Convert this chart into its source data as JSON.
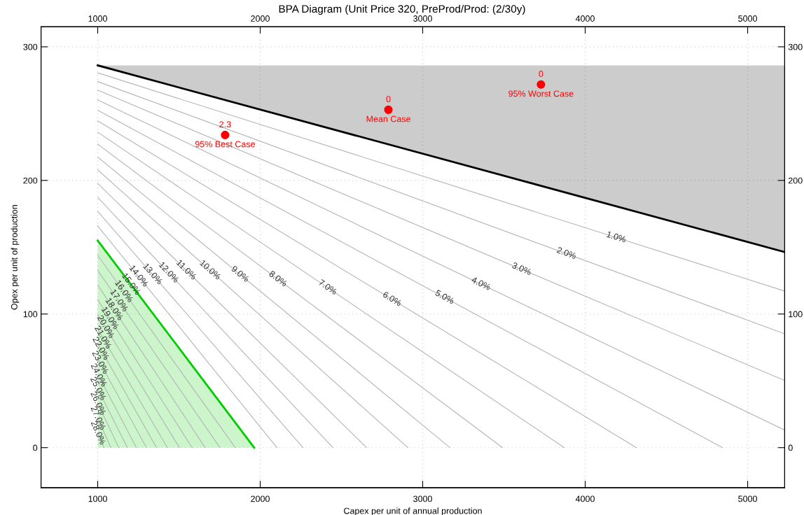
{
  "chart_data": {
    "type": "line",
    "title": "BPA Diagram (Unit Price 320, PreProd/Prod: (2/30y)",
    "xlabel": "Capex per unit of annual production",
    "ylabel": "Opex per unit of production",
    "xlim": [
      651,
      5228
    ],
    "xticks": [
      1000,
      2000,
      3000,
      4000,
      5000
    ],
    "x2lim": [
      651,
      5228
    ],
    "x2ticks": [
      1000,
      2000,
      3000,
      4000,
      5000
    ],
    "ylim": [
      -30,
      315
    ],
    "yticks": [
      0,
      100,
      200,
      300
    ],
    "y2lim": [
      -30,
      315
    ],
    "y2ticks": [
      0,
      100,
      200,
      300
    ],
    "grid": true,
    "legend": false,
    "marker": "none",
    "line_style": "solid",
    "color": "#b4b4b4",
    "series": [
      {
        "x": [
          1000,
          5228
        ],
        "values": [
          280.5,
          117.2
        ]
      },
      {
        "x": [
          1000,
          5228
        ],
        "values": [
          274.0,
          85.2
        ]
      },
      {
        "x": [
          1000,
          5228
        ],
        "values": [
          267.6,
          50.2
        ]
      },
      {
        "x": [
          1000,
          5228
        ],
        "values": [
          260.3,
          13.1
        ]
      },
      {
        "x": [
          1000,
          4845
        ],
        "values": [
          252.6,
          0
        ]
      },
      {
        "x": [
          1000,
          4315
        ],
        "values": [
          244.6,
          0
        ]
      },
      {
        "x": [
          1000,
          3871
        ],
        "values": [
          236.1,
          0
        ]
      },
      {
        "x": [
          1000,
          3491
        ],
        "values": [
          227.2,
          0
        ]
      },
      {
        "x": [
          1000,
          3168
        ],
        "values": [
          217.5,
          0
        ]
      },
      {
        "x": [
          1000,
          2909
        ],
        "values": [
          207.9,
          0
        ]
      },
      {
        "x": [
          1000,
          2655
        ],
        "values": [
          197.8,
          0
        ]
      },
      {
        "x": [
          1000,
          2448
        ],
        "values": [
          187.3,
          0
        ]
      },
      {
        "x": [
          1000,
          2263
        ],
        "values": [
          176.8,
          0
        ]
      },
      {
        "x": [
          1000,
          2103
        ],
        "values": [
          165.9,
          0
        ]
      },
      {
        "x": [
          1000,
          1847
        ],
        "values": [
          143.9,
          0
        ]
      },
      {
        "x": [
          1000,
          1752
        ],
        "values": [
          132.7,
          0
        ]
      },
      {
        "x": [
          1000,
          1661
        ],
        "values": [
          121.7,
          0
        ]
      },
      {
        "x": [
          1000,
          1581
        ],
        "values": [
          110.7,
          0
        ]
      },
      {
        "x": [
          1000,
          1503
        ],
        "values": [
          99.7,
          0
        ]
      },
      {
        "x": [
          1000,
          1429
        ],
        "values": [
          88.7,
          0
        ]
      },
      {
        "x": [
          1000,
          1362
        ],
        "values": [
          77.7,
          0
        ]
      },
      {
        "x": [
          1000,
          1300
        ],
        "values": [
          66.6,
          0
        ]
      },
      {
        "x": [
          1000,
          1238
        ],
        "values": [
          55.1,
          0
        ]
      },
      {
        "x": [
          1000,
          1183
        ],
        "values": [
          44.1,
          0
        ]
      },
      {
        "x": [
          1000,
          1130
        ],
        "values": [
          33.1,
          0
        ]
      },
      {
        "x": [
          1000,
          1081
        ],
        "values": [
          22.0,
          0
        ]
      },
      {
        "x": [
          1000,
          1039
        ],
        "values": [
          11.0,
          0
        ]
      },
      {
        "color": "#000000",
        "x": [
          1000,
          5228
        ],
        "values": [
          286.1,
          146.4
        ],
        "lower": [
          286.1,
          146.4
        ],
        "upper": [
          286.1,
          286.1
        ]
      },
      {
        "color": "#00cc00",
        "x": [
          1000,
          1963
        ],
        "values": [
          155.0,
          0
        ],
        "lower": [
          0,
          0
        ],
        "upper": [
          155.0,
          0
        ]
      },
      {
        "type": "scatter",
        "marker": "circle",
        "color": "#ff0000",
        "x": [
          1784,
          2789,
          3728
        ],
        "values": [
          234,
          252.9,
          271.8
        ]
      }
    ],
    "annotations": [
      {
        "text": "2.3",
        "x": 1784,
        "y": 234
      },
      {
        "text": "95% Best Case",
        "x": 1784,
        "y": 234
      },
      {
        "text": "0",
        "x": 2789,
        "y": 252.9
      },
      {
        "text": "Mean Case",
        "x": 2789,
        "y": 252.9
      },
      {
        "text": "0",
        "x": 3728,
        "y": 271.8
      },
      {
        "text": "95% Worst Case",
        "x": 3728,
        "y": 271.8
      },
      {
        "text": "1.0%",
        "x": 4190,
        "y": 157.3
      },
      {
        "text": "2.0%",
        "x": 3884,
        "y": 145.2
      },
      {
        "text": "3.0%",
        "x": 3608,
        "y": 133.5
      },
      {
        "text": "4.0%",
        "x": 3358,
        "y": 122.4
      },
      {
        "text": "5.0%",
        "x": 3134,
        "y": 112.4
      },
      {
        "text": "6.0%",
        "x": 2810,
        "y": 111.0
      },
      {
        "text": "7.0%",
        "x": 2414,
        "y": 119.8
      },
      {
        "text": "8.0%",
        "x": 2108,
        "y": 126.1
      },
      {
        "text": "9.0%",
        "x": 1875,
        "y": 129.7
      },
      {
        "text": "10.0%",
        "x": 1690,
        "y": 132.8
      },
      {
        "text": "11.0%",
        "x": 1543,
        "y": 132.9
      },
      {
        "text": "12.0%",
        "x": 1435,
        "y": 131.0
      },
      {
        "text": "13.0%",
        "x": 1336,
        "y": 129.8
      },
      {
        "text": "14.0%",
        "x": 1250,
        "y": 128.3
      },
      {
        "text": "15.0%",
        "x": 1203,
        "y": 122.3
      },
      {
        "text": "16.0%",
        "x": 1159,
        "y": 116.9
      },
      {
        "text": "17.0%",
        "x": 1129,
        "y": 110.0
      },
      {
        "text": "18.0%",
        "x": 1099,
        "y": 103.5
      },
      {
        "text": "19.0%",
        "x": 1073,
        "y": 96.8
      },
      {
        "text": "20.0%",
        "x": 1047,
        "y": 90.4
      },
      {
        "text": "21.0%",
        "x": 1030,
        "y": 82.5
      },
      {
        "text": "22.0%",
        "x": 1017,
        "y": 74.1
      },
      {
        "text": "23.0%",
        "x": 1013,
        "y": 63.7
      },
      {
        "text": "24.0%",
        "x": 1004,
        "y": 54.2
      },
      {
        "text": "25.0%",
        "x": 1000,
        "y": 44.1
      },
      {
        "text": "26.0%",
        "x": 1000,
        "y": 33.1
      },
      {
        "text": "27.0%",
        "x": 1000,
        "y": 22.0
      },
      {
        "text": "28.0%",
        "x": 1000,
        "y": 11.0
      }
    ]
  }
}
